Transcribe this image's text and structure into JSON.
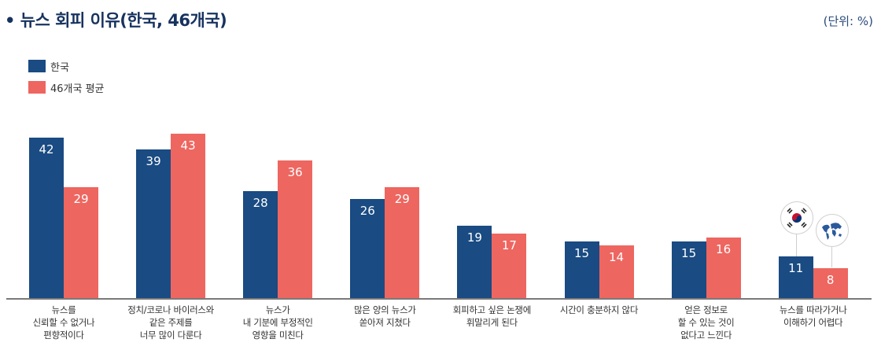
{
  "header": {
    "title": "• 뉴스 회피 이유(한국, 46개국)",
    "unit": "(단위: %)"
  },
  "legend": [
    {
      "label": "한국",
      "color": "#1a4b82"
    },
    {
      "label": "46개국 평균",
      "color": "#ee6660"
    }
  ],
  "chart_data": {
    "type": "bar",
    "title": "뉴스 회피 이유(한국, 46개국)",
    "xlabel": "",
    "ylabel": "(단위: %)",
    "ylim": [
      0,
      45
    ],
    "grid": false,
    "legend_position": "top-left",
    "categories": [
      "뉴스를 신뢰할 수 없거나 편향적이다",
      "정치/코로나 바이러스와 같은 주제를 너무 많이 다룬다",
      "뉴스가 내 기분에 부정적인 영향을 미친다",
      "많은 양의 뉴스가 쏟아져 지쳤다",
      "회피하고 싶은 논쟁에 휘말리게 된다",
      "시간이 충분하지 않다",
      "얻은 정보로 할 수 있는 것이 없다고 느낀다",
      "뉴스를 따라가거나 이해하기 어렵다"
    ],
    "series": [
      {
        "name": "한국",
        "color": "#1a4b82",
        "values": [
          42,
          39,
          28,
          26,
          19,
          15,
          15,
          11
        ]
      },
      {
        "name": "46개국 평균",
        "color": "#ee6660",
        "values": [
          29,
          43,
          36,
          29,
          17,
          14,
          16,
          8
        ]
      }
    ],
    "annotations": [
      "korea-flag-icon above last 한국 bar",
      "globe-icon above last 46개국 평균 bar"
    ]
  },
  "category_labels": [
    "뉴스를\n신뢰할 수 없거나\n편향적이다",
    "정치/코로나 바이러스와\n같은 주제를\n너무 많이 다룬다",
    "뉴스가\n내 기분에 부정적인\n영향을 미친다",
    "많은 양의 뉴스가\n쏟아져 지쳤다",
    "회피하고 싶은 논쟁에\n휘말리게 된다",
    "시간이 충분하지 않다",
    "얻은 정보로\n할 수 있는 것이\n없다고 느낀다",
    "뉴스를 따라가거나\n이해하기 어렵다"
  ]
}
